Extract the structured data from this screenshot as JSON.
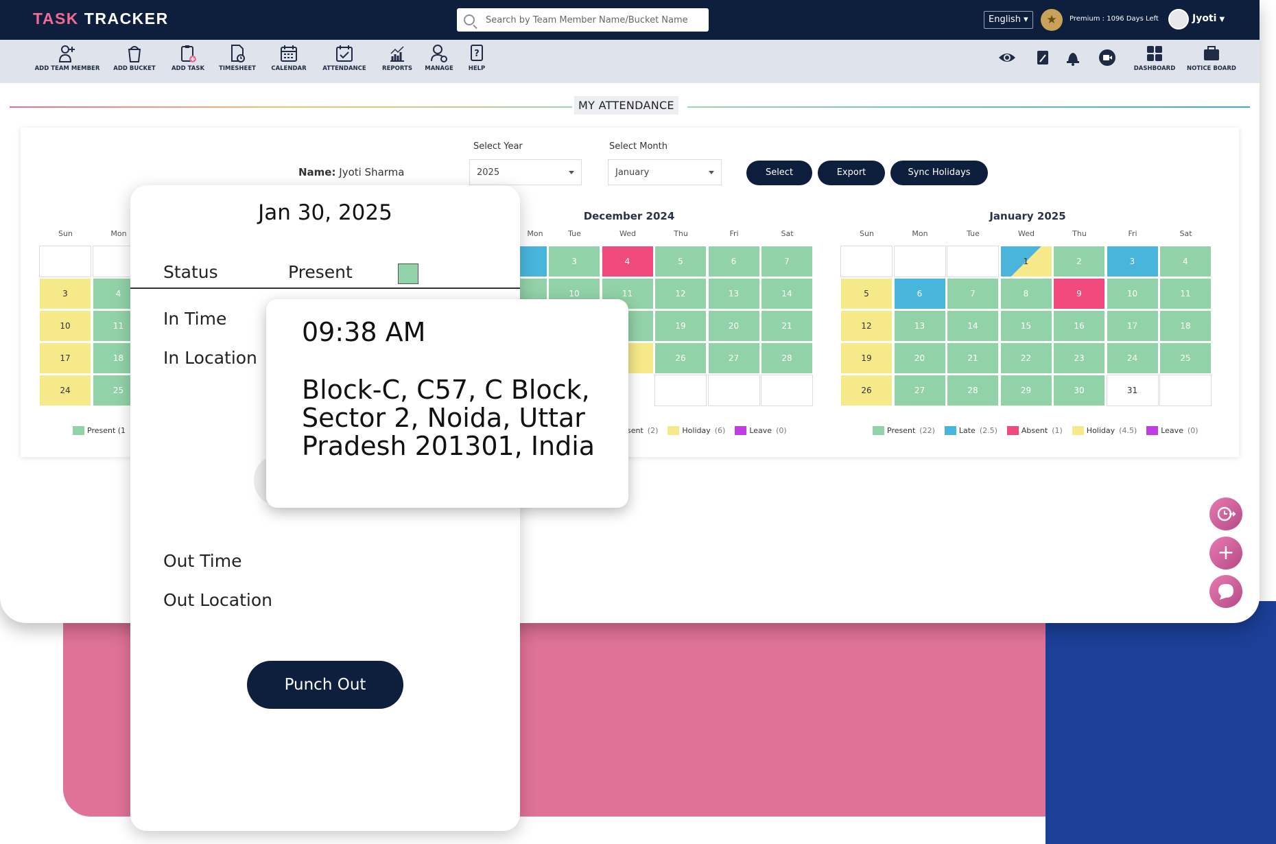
{
  "app": {
    "logo_part1": "TASK",
    "logo_part2": "TRACKER",
    "search_placeholder": "Search by Team Member Name/Bucket Name",
    "language": "English",
    "premium": "Premium : 1096 Days Left",
    "user": "Jyoti"
  },
  "toolbar": {
    "items": [
      {
        "label": "ADD TEAM MEMBER",
        "icon": "add-user-icon"
      },
      {
        "label": "ADD BUCKET",
        "icon": "bucket-icon"
      },
      {
        "label": "ADD TASK",
        "icon": "clipboard-add-icon"
      },
      {
        "label": "TIMESHEET",
        "icon": "timesheet-icon"
      },
      {
        "label": "CALENDAR",
        "icon": "calendar-icon"
      },
      {
        "label": "ATTENDANCE",
        "icon": "attendance-icon"
      },
      {
        "label": "REPORTS",
        "icon": "reports-icon"
      },
      {
        "label": "MANAGE",
        "icon": "manage-icon"
      },
      {
        "label": "HELP",
        "icon": "help-icon"
      }
    ],
    "right_items": [
      {
        "label": "",
        "icon": "eye-icon"
      },
      {
        "label": "",
        "icon": "edit-icon"
      },
      {
        "label": "",
        "icon": "bell-icon"
      },
      {
        "label": "",
        "icon": "video-icon"
      },
      {
        "label": "DASHBOARD",
        "icon": "dashboard-icon"
      },
      {
        "label": "NOTICE BOARD",
        "icon": "notice-board-icon"
      }
    ]
  },
  "page": {
    "title": "MY ATTENDANCE",
    "name_label": "Name:",
    "name_value": "Jyoti Sharma",
    "year_label": "Select Year",
    "year_value": "2025",
    "month_label": "Select Month",
    "month_value": "January",
    "select_btn": "Select",
    "export_btn": "Export",
    "sync_btn": "Sync Holidays"
  },
  "weekdays": [
    "Sun",
    "Mon",
    "Tue",
    "Wed",
    "Thu",
    "Fri",
    "Sat"
  ],
  "calendars": {
    "left": {
      "visible_days": [
        {
          "row": 1,
          "col": 0,
          "text": "3",
          "status": "holiday"
        },
        {
          "row": 1,
          "col": 1,
          "text": "4",
          "status": "present"
        },
        {
          "row": 2,
          "col": 0,
          "text": "10",
          "status": "holiday"
        },
        {
          "row": 2,
          "col": 1,
          "text": "11",
          "status": "present"
        },
        {
          "row": 3,
          "col": 0,
          "text": "17",
          "status": "holiday"
        },
        {
          "row": 3,
          "col": 1,
          "text": "18",
          "status": "present"
        },
        {
          "row": 4,
          "col": 0,
          "text": "24",
          "status": "holiday"
        },
        {
          "row": 4,
          "col": 1,
          "text": "25",
          "status": "present"
        }
      ],
      "legend_visible": "Present (1"
    },
    "december": {
      "title": "December 2024",
      "visible_days": [
        {
          "row": 0,
          "col": 2,
          "text": "3",
          "status": "present"
        },
        {
          "row": 0,
          "col": 3,
          "text": "4",
          "status": "absent"
        },
        {
          "row": 0,
          "col": 4,
          "text": "5",
          "status": "present"
        },
        {
          "row": 0,
          "col": 5,
          "text": "6",
          "status": "present"
        },
        {
          "row": 0,
          "col": 6,
          "text": "7",
          "status": "present"
        },
        {
          "row": 1,
          "col": 2,
          "text": "10",
          "status": "present"
        },
        {
          "row": 1,
          "col": 3,
          "text": "11",
          "status": "present"
        },
        {
          "row": 1,
          "col": 4,
          "text": "12",
          "status": "present"
        },
        {
          "row": 1,
          "col": 5,
          "text": "13",
          "status": "present"
        },
        {
          "row": 1,
          "col": 6,
          "text": "14",
          "status": "present"
        },
        {
          "row": 2,
          "col": 4,
          "text": "19",
          "status": "present"
        },
        {
          "row": 2,
          "col": 5,
          "text": "20",
          "status": "present"
        },
        {
          "row": 2,
          "col": 6,
          "text": "21",
          "status": "present"
        },
        {
          "row": 3,
          "col": 4,
          "text": "26",
          "status": "present"
        },
        {
          "row": 3,
          "col": 5,
          "text": "27",
          "status": "present"
        },
        {
          "row": 3,
          "col": 6,
          "text": "28",
          "status": "present"
        },
        {
          "row": 4,
          "col": 4,
          "text": "",
          "status": "empty"
        },
        {
          "row": 4,
          "col": 5,
          "text": "",
          "status": "empty"
        },
        {
          "row": 4,
          "col": 6,
          "text": "",
          "status": "empty"
        }
      ],
      "legend": [
        {
          "label": "sent",
          "count": "(2)",
          "color": "#f04a7c"
        },
        {
          "label": "Holiday",
          "count": "(6)",
          "color": "#f5e98a"
        },
        {
          "label": "Leave",
          "count": "(0)",
          "color": "#c23ce6"
        }
      ]
    },
    "january": {
      "title": "January 2025",
      "days": [
        {
          "row": 0,
          "col": 0,
          "text": "",
          "status": "empty"
        },
        {
          "row": 0,
          "col": 1,
          "text": "",
          "status": "empty"
        },
        {
          "row": 0,
          "col": 2,
          "text": "",
          "status": "empty"
        },
        {
          "row": 0,
          "col": 3,
          "text": "1",
          "status": "late-holiday"
        },
        {
          "row": 0,
          "col": 4,
          "text": "2",
          "status": "present"
        },
        {
          "row": 0,
          "col": 5,
          "text": "3",
          "status": "late"
        },
        {
          "row": 0,
          "col": 6,
          "text": "4",
          "status": "present"
        },
        {
          "row": 1,
          "col": 0,
          "text": "5",
          "status": "holiday"
        },
        {
          "row": 1,
          "col": 1,
          "text": "6",
          "status": "late"
        },
        {
          "row": 1,
          "col": 2,
          "text": "7",
          "status": "present"
        },
        {
          "row": 1,
          "col": 3,
          "text": "8",
          "status": "present"
        },
        {
          "row": 1,
          "col": 4,
          "text": "9",
          "status": "absent"
        },
        {
          "row": 1,
          "col": 5,
          "text": "10",
          "status": "present"
        },
        {
          "row": 1,
          "col": 6,
          "text": "11",
          "status": "present"
        },
        {
          "row": 2,
          "col": 0,
          "text": "12",
          "status": "holiday"
        },
        {
          "row": 2,
          "col": 1,
          "text": "13",
          "status": "present"
        },
        {
          "row": 2,
          "col": 2,
          "text": "14",
          "status": "present"
        },
        {
          "row": 2,
          "col": 3,
          "text": "15",
          "status": "present"
        },
        {
          "row": 2,
          "col": 4,
          "text": "16",
          "status": "present"
        },
        {
          "row": 2,
          "col": 5,
          "text": "17",
          "status": "present"
        },
        {
          "row": 2,
          "col": 6,
          "text": "18",
          "status": "present"
        },
        {
          "row": 3,
          "col": 0,
          "text": "19",
          "status": "holiday"
        },
        {
          "row": 3,
          "col": 1,
          "text": "20",
          "status": "present"
        },
        {
          "row": 3,
          "col": 2,
          "text": "21",
          "status": "present"
        },
        {
          "row": 3,
          "col": 3,
          "text": "22",
          "status": "present"
        },
        {
          "row": 3,
          "col": 4,
          "text": "23",
          "status": "present"
        },
        {
          "row": 3,
          "col": 5,
          "text": "24",
          "status": "present"
        },
        {
          "row": 3,
          "col": 6,
          "text": "25",
          "status": "present"
        },
        {
          "row": 4,
          "col": 0,
          "text": "26",
          "status": "holiday"
        },
        {
          "row": 4,
          "col": 1,
          "text": "27",
          "status": "present"
        },
        {
          "row": 4,
          "col": 2,
          "text": "28",
          "status": "present"
        },
        {
          "row": 4,
          "col": 3,
          "text": "29",
          "status": "present"
        },
        {
          "row": 4,
          "col": 4,
          "text": "30",
          "status": "present"
        },
        {
          "row": 4,
          "col": 5,
          "text": "31",
          "status": "empty"
        },
        {
          "row": 4,
          "col": 6,
          "text": "",
          "status": "empty"
        }
      ],
      "legend": [
        {
          "label": "Present",
          "count": "(22)",
          "color": "#92d2a8"
        },
        {
          "label": "Late",
          "count": "(2.5)",
          "color": "#4ab5dc"
        },
        {
          "label": "Absent",
          "count": "(1)",
          "color": "#f04a7c"
        },
        {
          "label": "Holiday",
          "count": "(4.5)",
          "color": "#f5e98a"
        },
        {
          "label": "Leave",
          "count": "(0)",
          "color": "#c23ce6"
        }
      ]
    }
  },
  "popup": {
    "date": "Jan 30, 2025",
    "status_label": "Status",
    "status_value": "Present",
    "in_time_label": "In Time",
    "in_location_label": "In Location",
    "out_time_label": "Out Time",
    "out_location_label": "Out Location",
    "punch_btn": "Punch Out"
  },
  "detail": {
    "time": "09:38 AM",
    "location": "Block-C, C57, C Block, Sector 2, Noida, Uttar Pradesh 201301, India"
  },
  "colors": {
    "navy": "#0e1e3d",
    "present": "#92d2a8",
    "late": "#4ab5dc",
    "absent": "#f04a7c",
    "holiday": "#f5e98a",
    "leave": "#c23ce6",
    "pink_bg": "#e07298",
    "blue_bg": "#1c3f97"
  }
}
